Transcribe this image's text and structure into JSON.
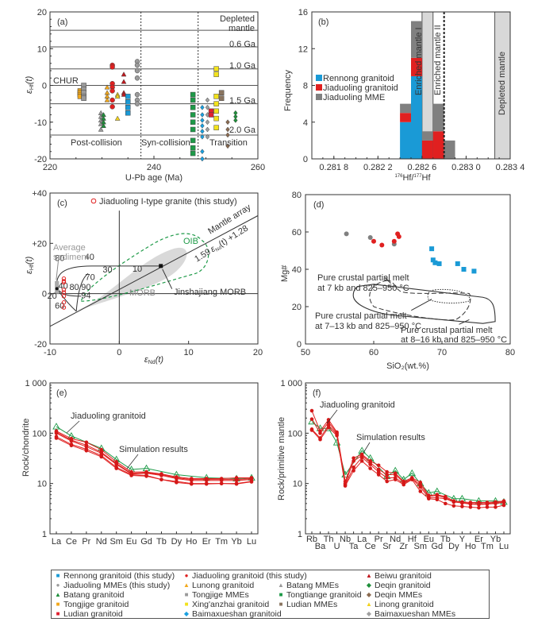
{
  "figure": {
    "legend": [
      {
        "label": "Rennong granitoid (this study)",
        "symbol": "square",
        "color": "#1a9ad6"
      },
      {
        "label": "Jiaduoling granitoid (this study)",
        "symbol": "circle",
        "color": "#e02020"
      },
      {
        "label": "Beiwu granitoid",
        "symbol": "triangle",
        "color": "#c0181e"
      },
      {
        "label": "Jiaduoling MMEs (this study)",
        "symbol": "circle",
        "color": "#9a9a9a"
      },
      {
        "label": "Lunong granitoid",
        "symbol": "triangle",
        "color": "#f2a81c"
      },
      {
        "label": "Batang MMEs",
        "symbol": "triangle",
        "color": "#9a9a9a"
      },
      {
        "label": "Deqin granitoid",
        "symbol": "diamond",
        "color": "#1e8f3a"
      },
      {
        "label": "Batang granitoid",
        "symbol": "triangle",
        "color": "#1e8f3a"
      },
      {
        "label": "Tongjige MMEs",
        "symbol": "square",
        "color": "#9a9a9a"
      },
      {
        "label": "Tongtiange granitoid",
        "symbol": "square",
        "color": "#1e9a48"
      },
      {
        "label": "Deqin MMEs",
        "symbol": "diamond",
        "color": "#8a6a50"
      },
      {
        "label": "Tongjige granitoid",
        "symbol": "square",
        "color": "#f2a81c"
      },
      {
        "label": "Xing'anzhai granitoid",
        "symbol": "square",
        "color": "#f2e21c"
      },
      {
        "label": "Ludian MMEs",
        "symbol": "square",
        "color": "#8a7560"
      },
      {
        "label": "Linong granitoid",
        "symbol": "triangle",
        "color": "#f2d21c"
      },
      {
        "label": "Ludian granitoid",
        "symbol": "square",
        "color": "#e02030"
      },
      {
        "label": "Baimaxueshan granitoid",
        "symbol": "diamond",
        "color": "#1aa0e0"
      },
      {
        "label": "Baimaxueshan MMEs",
        "symbol": "diamond",
        "color": "#a0a0a0"
      }
    ]
  },
  "chart_data": [
    {
      "panel": "(a)",
      "type": "scatter",
      "xlabel": "U-Pb age (Ma)",
      "ylabel": "εHf(t)",
      "xlim": [
        220,
        260
      ],
      "ylim": [
        -20,
        20
      ],
      "xticks": [
        "220",
        "240",
        "260"
      ],
      "yticks": [
        "20",
        "10",
        "0",
        "-10",
        "-20"
      ],
      "reference_lines": [
        {
          "label": "Depleted mantle",
          "y": 15
        },
        {
          "label": "0.6 Ga",
          "y": 10.5
        },
        {
          "label": "1.0 Ga",
          "y": 4.5
        },
        {
          "label": "CHUR",
          "y": 0
        },
        {
          "label": "1.5 Ga",
          "y": -5
        },
        {
          "label": "2.0 Ga",
          "y": -13.5
        }
      ],
      "dividers": [
        237.5,
        248.5
      ],
      "regions": [
        "Post-collision",
        "Syn-collision",
        "Transition"
      ],
      "series": [
        {
          "name": "Tongjige granitoid",
          "x": 225.8,
          "y": [
            -1.5,
            -2,
            -2.5,
            -3
          ]
        },
        {
          "name": "Tongjige MMEs",
          "x": 226.5,
          "y": [
            0,
            -1,
            -2,
            -3,
            -3.5
          ]
        },
        {
          "name": "Batang MMEs",
          "x": 229.8,
          "y": [
            -7.5,
            -8.5,
            -9.5,
            -10.5,
            -12
          ]
        },
        {
          "name": "Batang granitoid",
          "x": 230.3,
          "y": [
            -8,
            -9,
            -10,
            -11
          ]
        },
        {
          "name": "Lunong granitoid",
          "x": 231,
          "y": [
            -0.5,
            -2,
            -3,
            -4
          ]
        },
        {
          "name": "Jiaduoling granitoid (this study)",
          "x": 232,
          "y": [
            5.5,
            5,
            0.5,
            -0.5,
            -1.5,
            -4,
            -5.8
          ]
        },
        {
          "name": "Linong granitoid",
          "x": 233,
          "y": [
            -2.5,
            -3,
            -9
          ]
        },
        {
          "name": "Beiwu granitoid",
          "x": 234.2,
          "y": [
            3,
            1,
            -2,
            -2.5
          ]
        },
        {
          "name": "Rennong granitoid (this study)",
          "x": 235,
          "y": [
            -3,
            -4.5,
            -6,
            -7.5
          ]
        },
        {
          "name": "Jiaduoling MMEs (this study)",
          "x": 236.8,
          "y": [
            6.5,
            5.5,
            4,
            2,
            -2.5,
            -4,
            -5
          ]
        },
        {
          "name": "Tongtiange granitoid",
          "x": 247.5,
          "y": [
            -2.5,
            -4,
            -6,
            -8,
            -10,
            -12,
            -15,
            -17,
            -18.5
          ]
        },
        {
          "name": "Baimaxueshan granitoid",
          "x": 249.3,
          "y": [
            -6,
            -8,
            -9.5,
            -11,
            -12.5,
            -14,
            -18,
            -20
          ]
        },
        {
          "name": "Baimaxueshan MMEs",
          "x": 250.3,
          "y": [
            -4,
            -6,
            -8,
            -10,
            -12,
            -14
          ]
        },
        {
          "name": "Ludian granitoid",
          "x": 251,
          "y": [
            -7,
            -8
          ]
        },
        {
          "name": "Xing'anzhai granitoid",
          "x": 252,
          "y": [
            4.5,
            3,
            -3,
            -5,
            -7,
            -9,
            -11.5
          ]
        },
        {
          "name": "Ludian MMEs",
          "x": 253,
          "y": [
            -2,
            -3.5
          ]
        },
        {
          "name": "Deqin MMEs",
          "x": 254.2,
          "y": [
            -10,
            -12,
            -13.5,
            -16.5
          ]
        },
        {
          "name": "Deqin granitoid",
          "x": 255.7,
          "y": [
            -7.5,
            -8.5,
            -9.5
          ]
        }
      ]
    },
    {
      "panel": "(b)",
      "type": "bar",
      "stacked": true,
      "xlabel": "176Hf/177Hf",
      "ylabel": "Frequency",
      "xlim": [
        0.2816,
        0.2834
      ],
      "ylim": [
        0,
        16
      ],
      "xticks": [
        "0.281 8",
        "0.282 2",
        "0.282 6",
        "0.283 0",
        "0.283 4"
      ],
      "yticks": [
        "0",
        "4",
        "8",
        "12",
        "16"
      ],
      "bin_edges": [
        0.2824,
        0.2825,
        0.2826,
        0.2827,
        0.2828,
        0.2829
      ],
      "series": [
        {
          "name": "Rennong granitoid",
          "color": "#1a9ad6",
          "values": [
            4,
            9,
            0,
            0,
            0
          ]
        },
        {
          "name": "Jiaduoling granitoid",
          "color": "#e02020",
          "values": [
            1,
            2,
            2,
            3,
            0
          ]
        },
        {
          "name": "Jiaduoling MME",
          "color": "#808080",
          "values": [
            1,
            4,
            1,
            3,
            2
          ]
        }
      ],
      "bands": [
        {
          "label": "Enriched mantle I",
          "x": [
            0.2826,
            0.2827
          ]
        },
        {
          "label": "Depleted mantle",
          "x": [
            0.28326,
            0.2834
          ]
        }
      ],
      "lines": [
        {
          "label": "Enriched mantle II",
          "x": 0.2828,
          "style": "dashed"
        }
      ]
    },
    {
      "panel": "(c)",
      "type": "scatter",
      "xlabel": "εNd(t)",
      "ylabel": "εHf(t)",
      "xlim": [
        -10,
        20
      ],
      "ylim": [
        -20,
        40
      ],
      "xticks": [
        "-10",
        "0",
        "10",
        "20"
      ],
      "yticks": [
        "+40",
        "+20",
        "0",
        "-20"
      ],
      "legend": "Jiaduoling I-type granite (this study)",
      "annotations": [
        "Average sediment",
        "OIB",
        "MORB",
        "Jinshajiang MORB",
        "Mantle array",
        "1.59 εNd(t) + 1.28"
      ],
      "mixing_labels": [
        "80",
        "40",
        "40",
        "80",
        "90",
        "94",
        "70",
        "30",
        "10",
        "20",
        "60"
      ],
      "mantle_array": {
        "slope": 1.59,
        "intercept": 1.28
      },
      "jinshajiang_morb": [
        6,
        11
      ],
      "average_sediment": [
        -9,
        2
      ],
      "series": [
        {
          "name": "Jiaduoling I-type granite",
          "x": -8,
          "y": [
            6,
            5,
            4.5,
            1.5,
            0.5,
            -1,
            -3.5,
            -5.5
          ]
        }
      ]
    },
    {
      "panel": "(d)",
      "type": "scatter",
      "xlabel": "SiO2(wt.%)",
      "ylabel": "Mg#",
      "xlim": [
        50,
        80
      ],
      "ylim": [
        0,
        80
      ],
      "xticks": [
        "50",
        "60",
        "70",
        "80"
      ],
      "yticks": [
        "0",
        "20",
        "40",
        "60",
        "80"
      ],
      "annotations": [
        "Pure crustal partial melt at 7 kb and 825–950 °C",
        "Pure crustal partial melt at 7–13 kb and 825–950 °C",
        "Pure crustal partial melt at 8–16 kb and 825–950 °C"
      ],
      "series": [
        {
          "name": "Jiaduoling MMEs",
          "color": "#808080",
          "points": [
            [
              56,
              59
            ],
            [
              59.5,
              57
            ],
            [
              63,
              53.5
            ]
          ]
        },
        {
          "name": "Jiaduoling granitoid",
          "color": "#e02020",
          "points": [
            [
              60,
              55
            ],
            [
              61.2,
              53
            ],
            [
              63,
              55
            ],
            [
              63.5,
              59
            ],
            [
              63.7,
              57.5
            ]
          ]
        },
        {
          "name": "Rennong granitoid",
          "color": "#1a9ad6",
          "points": [
            [
              68.5,
              51
            ],
            [
              68.7,
              45
            ],
            [
              69,
              43.5
            ],
            [
              69.6,
              43
            ],
            [
              72.3,
              43
            ],
            [
              73.2,
              40
            ],
            [
              74.7,
              39
            ]
          ]
        }
      ]
    },
    {
      "panel": "(e)",
      "type": "line",
      "yscale": "log",
      "ylabel": "Rock/chondrite",
      "ylim": [
        1,
        1000
      ],
      "yticks": [
        "1 000",
        "100",
        "10",
        "1"
      ],
      "categories": [
        "La",
        "Ce",
        "Pr",
        "Nd",
        "Sm",
        "Eu",
        "Gd",
        "Tb",
        "Dy",
        "Ho",
        "Er",
        "Tm",
        "Yb",
        "Lu"
      ],
      "annotations": [
        "Jiaduoling granitoid",
        "Simulation results"
      ],
      "series": [
        {
          "name": "Jiaduoling granitoid",
          "style": "green-triangle",
          "values": [
            135,
            88,
            0,
            50,
            30,
            19,
            20,
            0,
            15,
            0,
            13,
            0,
            12.5,
            13
          ]
        },
        {
          "name": "Simulation 1",
          "values": [
            110,
            78,
            66,
            47,
            27,
            17,
            17,
            15.5,
            13.5,
            12.5,
            12.5,
            12.5,
            13,
            13
          ]
        },
        {
          "name": "Simulation 2",
          "values": [
            105,
            73,
            58,
            42,
            25,
            16,
            16.5,
            15,
            13,
            12,
            12,
            12,
            12,
            12.5
          ]
        },
        {
          "name": "Simulation 3",
          "values": [
            100,
            70,
            54,
            40,
            24,
            15.5,
            16,
            14.5,
            12.5,
            11.5,
            11.5,
            11.5,
            11.5,
            12
          ]
        },
        {
          "name": "Simulation 4",
          "values": [
            85,
            60,
            48,
            36,
            21,
            15,
            14.5,
            12,
            11,
            10,
            10,
            10,
            10,
            11
          ]
        },
        {
          "name": "Simulation 5",
          "values": [
            80,
            57,
            45,
            34,
            20,
            14.5,
            14,
            12,
            10.5,
            9.8,
            9.8,
            10,
            9.8,
            10.8
          ]
        }
      ]
    },
    {
      "panel": "(f)",
      "type": "line",
      "yscale": "log",
      "ylabel": "Rock/primitive mantle",
      "ylim": [
        1,
        1000
      ],
      "yticks": [
        "1 000",
        "100",
        "10",
        "1"
      ],
      "categories": [
        "Rb",
        "Ba",
        "Th",
        "U",
        "Nb",
        "Ta",
        "La",
        "Ce",
        "Pr",
        "Sr",
        "Nd",
        "Zr",
        "Hf",
        "Sm",
        "Eu",
        "Gd",
        "Tb",
        "Dy",
        "Y",
        "Ho",
        "Er",
        "Tm",
        "Yb",
        "Lu"
      ],
      "annotations": [
        "Jiaduoling granitoid",
        "Simulation results"
      ],
      "series": [
        {
          "name": "Jiaduoling granitoid",
          "style": "green-triangle",
          "values": [
            170,
            125,
            125,
            65,
            15,
            0,
            45,
            32,
            0,
            14,
            18,
            12,
            16,
            10,
            6.5,
            7,
            0,
            5,
            5,
            0,
            4.5,
            0,
            4.5,
            4.3
          ]
        },
        {
          "name": "Simulation 1",
          "values": [
            280,
            110,
            185,
            105,
            11,
            32,
            38,
            28,
            23,
            17,
            16,
            11,
            13,
            10.5,
            5.8,
            6,
            5.5,
            4.5,
            4.3,
            4.2,
            4.2,
            4.2,
            4.3,
            4.5
          ]
        },
        {
          "name": "Simulation 2",
          "values": [
            190,
            100,
            165,
            100,
            10,
            28,
            36,
            26,
            19,
            15,
            15,
            10.5,
            12.5,
            9.5,
            5.5,
            5.8,
            5.2,
            4.3,
            4.2,
            4,
            4,
            4,
            4.2,
            4.3
          ]
        },
        {
          "name": "Simulation 3",
          "values": [
            120,
            80,
            145,
            95,
            9.5,
            21,
            33,
            24,
            17,
            13,
            13,
            10,
            12.5,
            8.5,
            5.2,
            5.2,
            5,
            4.3,
            4.1,
            3.9,
            3.8,
            3.9,
            4,
            4.2
          ]
        },
        {
          "name": "Simulation 4",
          "values": [
            115,
            75,
            130,
            90,
            9,
            18,
            28,
            20,
            15,
            11,
            12,
            9.5,
            12,
            7,
            5,
            4.8,
            4,
            3.6,
            3.5,
            3.4,
            3.3,
            3.4,
            3.4,
            3.7
          ]
        }
      ]
    }
  ],
  "labels": {
    "a": {
      "tag": "(a)",
      "xlabel": "U-Pb age (Ma)",
      "ylabel_main": "ε",
      "ylabel_sub": "Hf",
      "ylabel_tail": "(t)",
      "region_post": "Post-collision",
      "region_syn": "Syn-collision",
      "region_trans": "Transition",
      "dm1": "Depleted",
      "dm2": "mantle",
      "g06": "0.6 Ga",
      "g10": "1.0 Ga",
      "chur": "CHUR",
      "g15": "1.5 Ga",
      "g20": "2.0 Ga"
    },
    "b": {
      "tag": "(b)",
      "xlabel_sup1": "176",
      "xlabel_hf1": "Hf/",
      "xlabel_sup2": "177",
      "xlabel_hf2": "Hf",
      "ylabel": "Frequency",
      "em1": "Enriched mantle I",
      "em2": "Enriched mantle II",
      "dm": "Depleted mantle"
    },
    "c": {
      "tag": "(c)",
      "legend": "Jiaduoling I-type granite (this study)",
      "avg1": "Average",
      "avg2": "sediment",
      "oib": "OIB",
      "morb": "MORB",
      "jmorb": "Jinshajiang MORB",
      "array": "Mantle array",
      "eq_pre": "1.59",
      "eq_e": "ε",
      "eq_sub": "Nd",
      "eq_post": "(t) +1.28",
      "xlabel_main": "ε",
      "xlabel_sub": "Nd",
      "xlabel_tail": "(t)",
      "ylabel_main": "ε",
      "ylabel_sub": "Hf",
      "ylabel_tail": "(t)"
    },
    "d": {
      "tag": "(d)",
      "xlabel": "SiO₂(wt.%)",
      "ylabel": "Mg#",
      "a1": "Pure crustal partial melt",
      "a1b": "at 7 kb and 825–950 °C",
      "a2": "Pure crustal partial melt",
      "a2b": "at 7–13 kb and 825–950 °C",
      "a3": "Pure crustal partial melt",
      "a3b": "at 8–16 kb and 825–950 °C"
    },
    "e": {
      "tag": "(e)",
      "ylabel": "Rock/chondrite",
      "ann1": "Jiaduoling granitoid",
      "ann2": "Simulation results"
    },
    "f": {
      "tag": "(f)",
      "ylabel": "Rock/primitive mantle",
      "ann1": "Jiaduoling granitoid",
      "ann2": "Simulation results"
    }
  }
}
